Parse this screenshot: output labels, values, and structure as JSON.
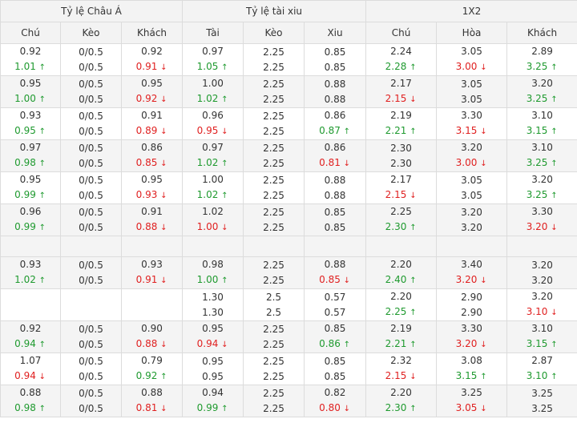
{
  "groups": [
    {
      "label": "Tỷ lệ Châu Á",
      "span": 3
    },
    {
      "label": "Tỷ lệ tài xiu",
      "span": 3
    },
    {
      "label": "1X2",
      "span": 3
    }
  ],
  "columns": [
    "Chú",
    "Kèo",
    "Khách",
    "Tài",
    "Kèo",
    "Xiu",
    "Chú",
    "Hòa",
    "Khách"
  ],
  "arrows": {
    "up": "↑",
    "down": "↓"
  },
  "colors": {
    "up": "#1f9a2f",
    "down": "#e02020",
    "neutral": "#333333"
  },
  "rows": [
    {
      "cells": [
        [
          {
            "v": "0.92"
          },
          {
            "v": "1.01",
            "d": "up"
          }
        ],
        [
          {
            "v": "0/0.5"
          },
          {
            "v": "0/0.5"
          }
        ],
        [
          {
            "v": "0.92"
          },
          {
            "v": "0.91",
            "d": "down"
          }
        ],
        [
          {
            "v": "0.97"
          },
          {
            "v": "1.05",
            "d": "up"
          }
        ],
        [
          {
            "v": "2.25"
          },
          {
            "v": "2.25"
          }
        ],
        [
          {
            "v": "0.85"
          },
          {
            "v": "0.85"
          }
        ],
        [
          {
            "v": "2.24"
          },
          {
            "v": "2.28",
            "d": "up"
          }
        ],
        [
          {
            "v": "3.05"
          },
          {
            "v": "3.00",
            "d": "down"
          }
        ],
        [
          {
            "v": "2.89"
          },
          {
            "v": "3.25",
            "d": "up"
          }
        ]
      ]
    },
    {
      "cells": [
        [
          {
            "v": "0.95"
          },
          {
            "v": "1.00",
            "d": "up"
          }
        ],
        [
          {
            "v": "0/0.5"
          },
          {
            "v": "0/0.5"
          }
        ],
        [
          {
            "v": "0.95"
          },
          {
            "v": "0.92",
            "d": "down"
          }
        ],
        [
          {
            "v": "1.00"
          },
          {
            "v": "1.02",
            "d": "up"
          }
        ],
        [
          {
            "v": "2.25"
          },
          {
            "v": "2.25"
          }
        ],
        [
          {
            "v": "0.88"
          },
          {
            "v": "0.88"
          }
        ],
        [
          {
            "v": "2.17"
          },
          {
            "v": "2.15",
            "d": "down"
          }
        ],
        [
          {
            "v": "3.05"
          },
          {
            "v": "3.05"
          }
        ],
        [
          {
            "v": "3.20"
          },
          {
            "v": "3.25",
            "d": "up"
          }
        ]
      ]
    },
    {
      "cells": [
        [
          {
            "v": "0.93"
          },
          {
            "v": "0.95",
            "d": "up"
          }
        ],
        [
          {
            "v": "0/0.5"
          },
          {
            "v": "0/0.5"
          }
        ],
        [
          {
            "v": "0.91"
          },
          {
            "v": "0.89",
            "d": "down"
          }
        ],
        [
          {
            "v": "0.96"
          },
          {
            "v": "0.95",
            "d": "down"
          }
        ],
        [
          {
            "v": "2.25"
          },
          {
            "v": "2.25"
          }
        ],
        [
          {
            "v": "0.86"
          },
          {
            "v": "0.87",
            "d": "up"
          }
        ],
        [
          {
            "v": "2.19"
          },
          {
            "v": "2.21",
            "d": "up"
          }
        ],
        [
          {
            "v": "3.30"
          },
          {
            "v": "3.15",
            "d": "down"
          }
        ],
        [
          {
            "v": "3.10"
          },
          {
            "v": "3.15",
            "d": "up"
          }
        ]
      ]
    },
    {
      "cells": [
        [
          {
            "v": "0.97"
          },
          {
            "v": "0.98",
            "d": "up"
          }
        ],
        [
          {
            "v": "0/0.5"
          },
          {
            "v": "0/0.5"
          }
        ],
        [
          {
            "v": "0.86"
          },
          {
            "v": "0.85",
            "d": "down"
          }
        ],
        [
          {
            "v": "0.97"
          },
          {
            "v": "1.02",
            "d": "up"
          }
        ],
        [
          {
            "v": "2.25"
          },
          {
            "v": "2.25"
          }
        ],
        [
          {
            "v": "0.86"
          },
          {
            "v": "0.81",
            "d": "down"
          }
        ],
        [
          {
            "v": "2.30"
          },
          {
            "v": "2.30"
          }
        ],
        [
          {
            "v": "3.20"
          },
          {
            "v": "3.00",
            "d": "down"
          }
        ],
        [
          {
            "v": "3.10"
          },
          {
            "v": "3.25",
            "d": "up"
          }
        ]
      ]
    },
    {
      "cells": [
        [
          {
            "v": "0.95"
          },
          {
            "v": "0.99",
            "d": "up"
          }
        ],
        [
          {
            "v": "0/0.5"
          },
          {
            "v": "0/0.5"
          }
        ],
        [
          {
            "v": "0.95"
          },
          {
            "v": "0.93",
            "d": "down"
          }
        ],
        [
          {
            "v": "1.00"
          },
          {
            "v": "1.02",
            "d": "up"
          }
        ],
        [
          {
            "v": "2.25"
          },
          {
            "v": "2.25"
          }
        ],
        [
          {
            "v": "0.88"
          },
          {
            "v": "0.88"
          }
        ],
        [
          {
            "v": "2.17"
          },
          {
            "v": "2.15",
            "d": "down"
          }
        ],
        [
          {
            "v": "3.05"
          },
          {
            "v": "3.05"
          }
        ],
        [
          {
            "v": "3.20"
          },
          {
            "v": "3.25",
            "d": "up"
          }
        ]
      ]
    },
    {
      "cells": [
        [
          {
            "v": "0.96"
          },
          {
            "v": "0.99",
            "d": "up"
          }
        ],
        [
          {
            "v": "0/0.5"
          },
          {
            "v": "0/0.5"
          }
        ],
        [
          {
            "v": "0.91"
          },
          {
            "v": "0.88",
            "d": "down"
          }
        ],
        [
          {
            "v": "1.02"
          },
          {
            "v": "1.00",
            "d": "down"
          }
        ],
        [
          {
            "v": "2.25"
          },
          {
            "v": "2.25"
          }
        ],
        [
          {
            "v": "0.85"
          },
          {
            "v": "0.85"
          }
        ],
        [
          {
            "v": "2.25"
          },
          {
            "v": "2.30",
            "d": "up"
          }
        ],
        [
          {
            "v": "3.20"
          },
          {
            "v": "3.20"
          }
        ],
        [
          {
            "v": "3.30"
          },
          {
            "v": "3.20",
            "d": "down"
          }
        ]
      ]
    },
    {
      "blank": true
    },
    {
      "cells": [
        [
          {
            "v": "0.93"
          },
          {
            "v": "1.02",
            "d": "up"
          }
        ],
        [
          {
            "v": "0/0.5"
          },
          {
            "v": "0/0.5"
          }
        ],
        [
          {
            "v": "0.93"
          },
          {
            "v": "0.91",
            "d": "down"
          }
        ],
        [
          {
            "v": "0.98"
          },
          {
            "v": "1.00",
            "d": "up"
          }
        ],
        [
          {
            "v": "2.25"
          },
          {
            "v": "2.25"
          }
        ],
        [
          {
            "v": "0.88"
          },
          {
            "v": "0.85",
            "d": "down"
          }
        ],
        [
          {
            "v": "2.20"
          },
          {
            "v": "2.40",
            "d": "up"
          }
        ],
        [
          {
            "v": "3.40"
          },
          {
            "v": "3.20",
            "d": "down"
          }
        ],
        [
          {
            "v": "3.20"
          },
          {
            "v": "3.20"
          }
        ]
      ]
    },
    {
      "cells": [
        [],
        [],
        [],
        [
          {
            "v": "1.30"
          },
          {
            "v": "1.30"
          }
        ],
        [
          {
            "v": "2.5"
          },
          {
            "v": "2.5"
          }
        ],
        [
          {
            "v": "0.57"
          },
          {
            "v": "0.57"
          }
        ],
        [
          {
            "v": "2.20"
          },
          {
            "v": "2.25",
            "d": "up"
          }
        ],
        [
          {
            "v": "2.90"
          },
          {
            "v": "2.90"
          }
        ],
        [
          {
            "v": "3.20"
          },
          {
            "v": "3.10",
            "d": "down"
          }
        ]
      ]
    },
    {
      "cells": [
        [
          {
            "v": "0.92"
          },
          {
            "v": "0.94",
            "d": "up"
          }
        ],
        [
          {
            "v": "0/0.5"
          },
          {
            "v": "0/0.5"
          }
        ],
        [
          {
            "v": "0.90"
          },
          {
            "v": "0.88",
            "d": "down"
          }
        ],
        [
          {
            "v": "0.95"
          },
          {
            "v": "0.94",
            "d": "down"
          }
        ],
        [
          {
            "v": "2.25"
          },
          {
            "v": "2.25"
          }
        ],
        [
          {
            "v": "0.85"
          },
          {
            "v": "0.86",
            "d": "up"
          }
        ],
        [
          {
            "v": "2.19"
          },
          {
            "v": "2.21",
            "d": "up"
          }
        ],
        [
          {
            "v": "3.30"
          },
          {
            "v": "3.20",
            "d": "down"
          }
        ],
        [
          {
            "v": "3.10"
          },
          {
            "v": "3.15",
            "d": "up"
          }
        ]
      ]
    },
    {
      "cells": [
        [
          {
            "v": "1.07"
          },
          {
            "v": "0.94",
            "d": "down"
          }
        ],
        [
          {
            "v": "0/0.5"
          },
          {
            "v": "0/0.5"
          }
        ],
        [
          {
            "v": "0.79"
          },
          {
            "v": "0.92",
            "d": "up"
          }
        ],
        [
          {
            "v": "0.95"
          },
          {
            "v": "0.95"
          }
        ],
        [
          {
            "v": "2.25"
          },
          {
            "v": "2.25"
          }
        ],
        [
          {
            "v": "0.85"
          },
          {
            "v": "0.85"
          }
        ],
        [
          {
            "v": "2.32"
          },
          {
            "v": "2.15",
            "d": "down"
          }
        ],
        [
          {
            "v": "3.08"
          },
          {
            "v": "3.15",
            "d": "up"
          }
        ],
        [
          {
            "v": "2.87"
          },
          {
            "v": "3.10",
            "d": "up"
          }
        ]
      ]
    },
    {
      "cells": [
        [
          {
            "v": "0.88"
          },
          {
            "v": "0.98",
            "d": "up"
          }
        ],
        [
          {
            "v": "0/0.5"
          },
          {
            "v": "0/0.5"
          }
        ],
        [
          {
            "v": "0.88"
          },
          {
            "v": "0.81",
            "d": "down"
          }
        ],
        [
          {
            "v": "0.94"
          },
          {
            "v": "0.99",
            "d": "up"
          }
        ],
        [
          {
            "v": "2.25"
          },
          {
            "v": "2.25"
          }
        ],
        [
          {
            "v": "0.82"
          },
          {
            "v": "0.80",
            "d": "down"
          }
        ],
        [
          {
            "v": "2.20"
          },
          {
            "v": "2.30",
            "d": "up"
          }
        ],
        [
          {
            "v": "3.25"
          },
          {
            "v": "3.05",
            "d": "down"
          }
        ],
        [
          {
            "v": "3.25"
          },
          {
            "v": "3.25"
          }
        ]
      ]
    }
  ]
}
